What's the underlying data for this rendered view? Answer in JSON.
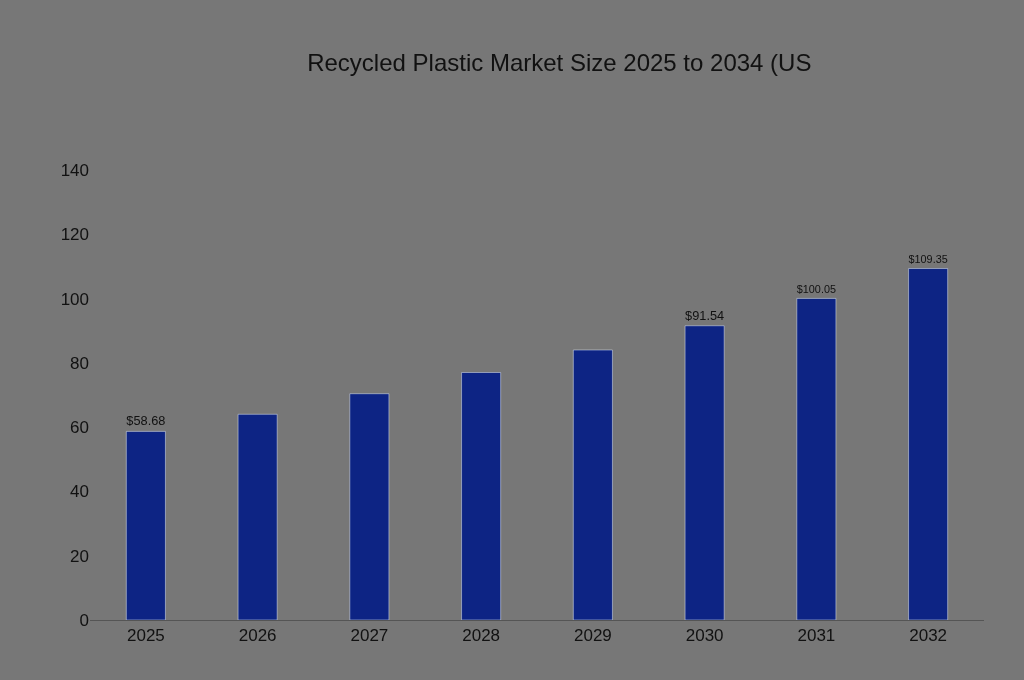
{
  "chart_data": {
    "type": "bar",
    "title": "Recycled Plastic Market Size 2025 to 2034 (US",
    "categories": [
      "2025",
      "2026",
      "2027",
      "2028",
      "2029",
      "2030",
      "2031",
      "2032"
    ],
    "values": [
      58.68,
      64,
      70.4,
      77,
      84,
      91.54,
      100.05,
      109.35
    ],
    "value_labels": [
      "$58.68",
      null,
      null,
      null,
      null,
      "$91.54",
      "$100.05",
      "$109.35"
    ],
    "color": "#0d2484",
    "ylim": [
      0,
      140
    ],
    "yticks": [
      0,
      20,
      40,
      60,
      80,
      100,
      120,
      140
    ],
    "grid": false
  }
}
